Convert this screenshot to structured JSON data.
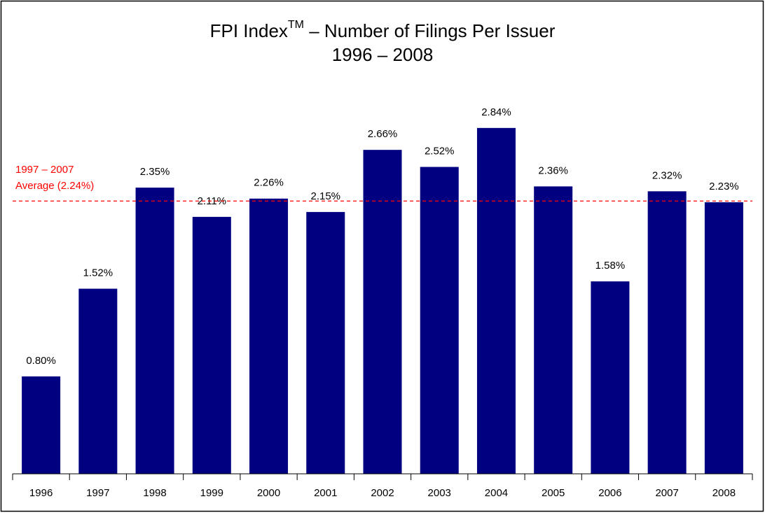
{
  "chart_data": {
    "type": "bar",
    "title_parts": [
      "FPI Index",
      "TM",
      " – Number of Filings Per Issuer"
    ],
    "subtitle": "1996 – 2008",
    "categories": [
      "1996",
      "1997",
      "1998",
      "1999",
      "2000",
      "2001",
      "2002",
      "2003",
      "2004",
      "2005",
      "2006",
      "2007",
      "2008"
    ],
    "values": [
      0.8,
      1.52,
      2.35,
      2.11,
      2.26,
      2.15,
      2.66,
      2.52,
      2.84,
      2.36,
      1.58,
      2.32,
      2.23
    ],
    "value_labels": [
      "0.80%",
      "1.52%",
      "2.35%",
      "2.11%",
      "2.26%",
      "2.15%",
      "2.66%",
      "2.52%",
      "2.84%",
      "2.36%",
      "1.58%",
      "2.32%",
      "2.23%"
    ],
    "color": "#000080",
    "ylim": [
      0,
      3.5
    ],
    "reference_line": {
      "value": 2.24,
      "label": [
        "1997 – 2007",
        "Average (2.24%)"
      ],
      "color": "#ff0000"
    }
  }
}
